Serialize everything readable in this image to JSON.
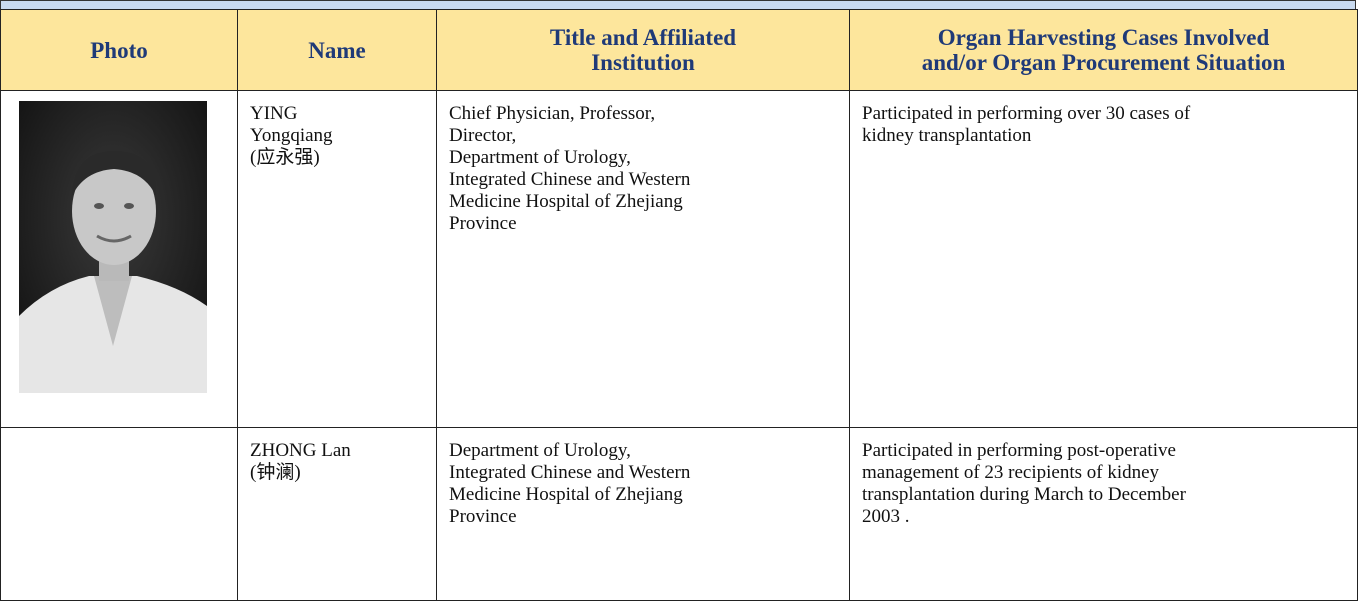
{
  "table": {
    "headers": [
      "Photo",
      "Name",
      [
        "Title and Affiliated",
        "Institution"
      ],
      [
        "Organ Harvesting Cases Involved",
        "and/or Organ Procurement Situation"
      ]
    ],
    "rows": [
      {
        "name": [
          "YING",
          "Yongqiang",
          "(应永强)"
        ],
        "title": [
          "Chief Physician, Professor,",
          "Director,",
          "Department of Urology,",
          "Integrated Chinese and Western",
          "Medicine Hospital of Zhejiang",
          "Province"
        ],
        "cases": [
          "Participated in performing over 30 cases of",
          "kidney transplantation"
        ]
      },
      {
        "name": [
          "ZHONG Lan",
          "(钟澜)"
        ],
        "title": [
          "Department of Urology,",
          "Integrated Chinese and Western",
          "Medicine Hospital of Zhejiang",
          "Province"
        ],
        "cases": [
          "Participated in performing post-operative",
          "management of 23 recipients of kidney",
          "transplantation during March to December",
          "2003 ."
        ]
      }
    ]
  }
}
